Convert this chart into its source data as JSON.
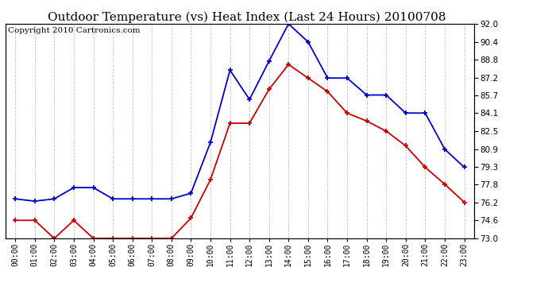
{
  "title": "Outdoor Temperature (vs) Heat Index (Last 24 Hours) 20100708",
  "copyright": "Copyright 2010 Cartronics.com",
  "hours": [
    "00:00",
    "01:00",
    "02:00",
    "03:00",
    "04:00",
    "05:00",
    "06:00",
    "07:00",
    "08:00",
    "09:00",
    "10:00",
    "11:00",
    "12:00",
    "13:00",
    "14:00",
    "15:00",
    "16:00",
    "17:00",
    "18:00",
    "19:00",
    "20:00",
    "21:00",
    "22:00",
    "23:00"
  ],
  "blue_line": [
    76.5,
    76.3,
    76.5,
    77.5,
    77.5,
    76.5,
    76.5,
    76.5,
    76.5,
    77.0,
    81.5,
    87.9,
    85.3,
    88.7,
    92.0,
    90.4,
    87.2,
    87.2,
    85.7,
    85.7,
    84.1,
    84.1,
    80.9,
    79.3
  ],
  "red_line": [
    74.6,
    74.6,
    73.0,
    74.6,
    73.0,
    73.0,
    73.0,
    73.0,
    73.0,
    74.8,
    78.2,
    83.2,
    83.2,
    86.2,
    88.4,
    87.2,
    86.0,
    84.1,
    83.4,
    82.5,
    81.2,
    79.3,
    77.8,
    76.2
  ],
  "ylim": [
    73.0,
    92.0
  ],
  "yticks": [
    73.0,
    74.6,
    76.2,
    77.8,
    79.3,
    80.9,
    82.5,
    84.1,
    85.7,
    87.2,
    88.8,
    90.4,
    92.0
  ],
  "blue_color": "#0000cc",
  "red_color": "#cc0000",
  "background_color": "#ffffff",
  "grid_color": "#bbbbbb",
  "title_fontsize": 11,
  "copyright_fontsize": 7.5
}
